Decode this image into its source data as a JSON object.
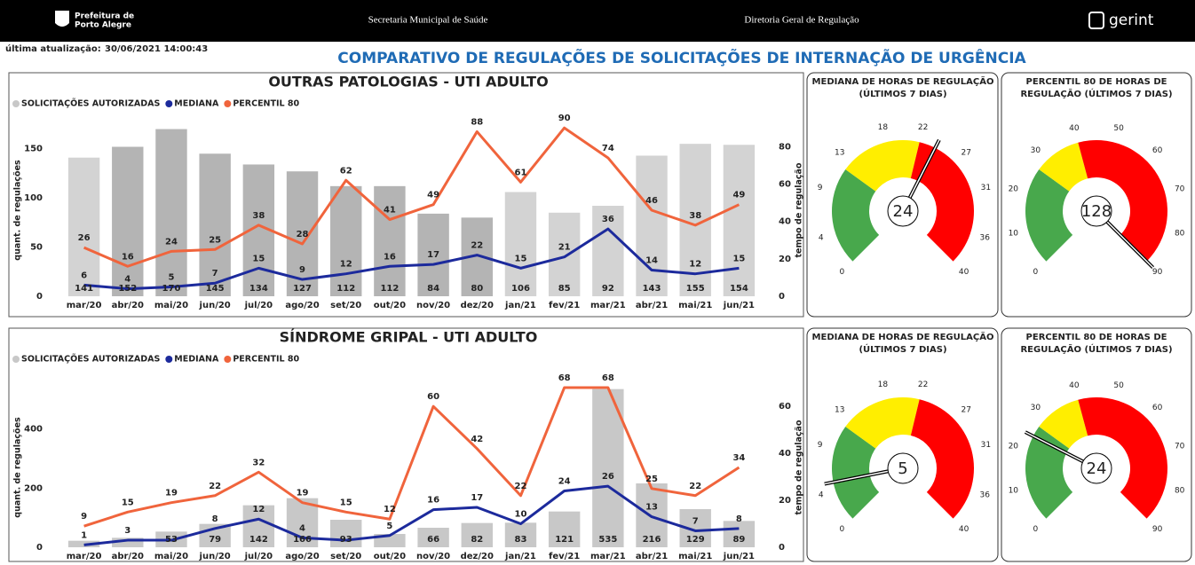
{
  "header": {
    "logo": [
      "Prefeitura de",
      "Porto Alegre"
    ],
    "secretaria": "Secretaria Municipal de Saúde",
    "diretoria": "Diretoria Geral de Regulação",
    "brand": "gerint"
  },
  "update": {
    "label": "última atualização:",
    "value": "30/06/2021 14:00:43"
  },
  "title": "COMPARATIVO DE REGULAÇÕES DE SOLICITAÇÕES DE INTERNAÇÃO DE URGÊNCIA",
  "chart_data": [
    {
      "type": "combo",
      "title": "OUTRAS PATOLOGIAS - UTI ADULTO",
      "categories": [
        "mar/20",
        "abr/20",
        "mai/20",
        "jun/20",
        "jul/20",
        "ago/20",
        "set/20",
        "out/20",
        "nov/20",
        "dez/20",
        "jan/21",
        "fev/21",
        "mar/21",
        "abr/21",
        "mai/21",
        "jun/21"
      ],
      "ylabel": "quant. de regulações",
      "y2label": "tempo de regulação",
      "ylim": [
        0,
        175
      ],
      "yticks": [
        0,
        50,
        100,
        150
      ],
      "y2lim": [
        0,
        92
      ],
      "y2ticks": [
        0,
        20,
        40,
        60,
        80
      ],
      "series": [
        {
          "name": "SOLICITAÇÕES AUTORIZADAS",
          "type": "bar",
          "color": "#c8c8c8",
          "colors": [
            "#d3d3d3",
            "#b4b4b4",
            "#b4b4b4",
            "#b4b4b4",
            "#b4b4b4",
            "#b4b4b4",
            "#b4b4b4",
            "#b4b4b4",
            "#b4b4b4",
            "#b4b4b4",
            "#d3d3d3",
            "#d3d3d3",
            "#d3d3d3",
            "#d3d3d3",
            "#d3d3d3",
            "#d3d3d3"
          ],
          "values": [
            141,
            152,
            170,
            145,
            134,
            127,
            112,
            112,
            84,
            80,
            106,
            85,
            92,
            143,
            155,
            154
          ]
        },
        {
          "name": "MEDIANA",
          "type": "line",
          "axis": "y2",
          "color": "#1c2a9c",
          "values": [
            6,
            4,
            5,
            7,
            15,
            9,
            12,
            16,
            17,
            22,
            15,
            21,
            36,
            14,
            12,
            15
          ]
        },
        {
          "name": "PERCENTIL 80",
          "type": "line",
          "axis": "y2",
          "color": "#f0643c",
          "values": [
            26,
            16,
            24,
            25,
            38,
            28,
            62,
            41,
            49,
            88,
            61,
            90,
            74,
            46,
            38,
            49
          ]
        }
      ]
    },
    {
      "type": "combo",
      "title": "SÍNDROME GRIPAL - UTI ADULTO",
      "categories": [
        "mar/20",
        "abr/20",
        "mai/20",
        "jun/20",
        "jul/20",
        "ago/20",
        "set/20",
        "out/20",
        "nov/20",
        "dez/20",
        "jan/21",
        "fev/21",
        "mar/21",
        "abr/21",
        "mai/21",
        "jun/21"
      ],
      "ylabel": "quant. de regulações",
      "y2label": "tempo de regulação",
      "ylim": [
        0,
        540
      ],
      "yticks": [
        0,
        200,
        400
      ],
      "y2lim": [
        0,
        68
      ],
      "y2ticks": [
        0,
        20,
        40,
        60
      ],
      "series": [
        {
          "name": "SOLICITAÇÕES AUTORIZADAS",
          "type": "bar",
          "color": "#c8c8c8",
          "values": [
            22,
            32,
            53,
            79,
            142,
            166,
            93,
            45,
            66,
            82,
            83,
            121,
            535,
            216,
            129,
            89
          ],
          "value_labels": [
            null,
            null,
            "53",
            "79",
            "142",
            "166",
            "93",
            null,
            "66",
            "82",
            "83",
            "121",
            "535",
            "216",
            "129",
            "89"
          ]
        },
        {
          "name": "MEDIANA",
          "type": "line",
          "axis": "y2",
          "color": "#1c2a9c",
          "values": [
            1,
            3,
            3,
            8,
            12,
            4,
            3,
            5,
            16,
            17,
            10,
            24,
            26,
            13,
            7,
            8
          ],
          "value_labels": [
            "1",
            "3",
            null,
            "8",
            "12",
            "4",
            null,
            "5",
            "16",
            "17",
            "10",
            "24",
            "26",
            "13",
            "7",
            "8"
          ]
        },
        {
          "name": "PERCENTIL 80",
          "type": "line",
          "axis": "y2",
          "color": "#f0643c",
          "values": [
            9,
            15,
            19,
            22,
            32,
            19,
            15,
            12,
            60,
            42,
            22,
            68,
            68,
            25,
            22,
            34
          ]
        }
      ]
    },
    {
      "type": "gauge",
      "title": [
        "MEDIANA DE HORAS DE REGULAÇÃO",
        "(ÚLTIMOS 7 DIAS)"
      ],
      "value": 24,
      "lim": [
        0,
        40
      ],
      "ticks": [
        0,
        4,
        9,
        13,
        18,
        22,
        27,
        31,
        36,
        40
      ],
      "bands": [
        {
          "from": 0,
          "to": 12,
          "color": "#48a84c"
        },
        {
          "from": 12,
          "to": 22,
          "color": "#ffee00"
        },
        {
          "from": 22,
          "to": 40,
          "color": "#ff0000"
        }
      ]
    },
    {
      "type": "gauge",
      "title": [
        "PERCENTIL 80 DE HORAS DE",
        "REGULAÇÃO (ÚLTIMOS 7 DIAS)"
      ],
      "value": 128,
      "lim": [
        0,
        90
      ],
      "ticks": [
        0,
        10,
        20,
        30,
        40,
        50,
        60,
        70,
        80,
        90
      ],
      "bands": [
        {
          "from": 0,
          "to": 27,
          "color": "#48a84c"
        },
        {
          "from": 27,
          "to": 40,
          "color": "#ffee00"
        },
        {
          "from": 40,
          "to": 90,
          "color": "#ff0000"
        }
      ]
    },
    {
      "type": "gauge",
      "title": [
        "MEDIANA DE HORAS DE REGULAÇÃO",
        "(ÚLTIMOS 7 DIAS)"
      ],
      "value": 5,
      "lim": [
        0,
        40
      ],
      "ticks": [
        0,
        4,
        9,
        13,
        18,
        22,
        27,
        31,
        36,
        40
      ],
      "bands": [
        {
          "from": 0,
          "to": 12,
          "color": "#48a84c"
        },
        {
          "from": 12,
          "to": 22,
          "color": "#ffee00"
        },
        {
          "from": 22,
          "to": 40,
          "color": "#ff0000"
        }
      ]
    },
    {
      "type": "gauge",
      "title": [
        "PERCENTIL 80 DE HORAS DE",
        "REGULAÇÃO (ÚLTIMOS 7 DIAS)"
      ],
      "value": 24,
      "lim": [
        0,
        90
      ],
      "ticks": [
        0,
        10,
        20,
        30,
        40,
        50,
        60,
        70,
        80,
        90
      ],
      "bands": [
        {
          "from": 0,
          "to": 27,
          "color": "#48a84c"
        },
        {
          "from": 27,
          "to": 40,
          "color": "#ffee00"
        },
        {
          "from": 40,
          "to": 90,
          "color": "#ff0000"
        }
      ]
    }
  ]
}
